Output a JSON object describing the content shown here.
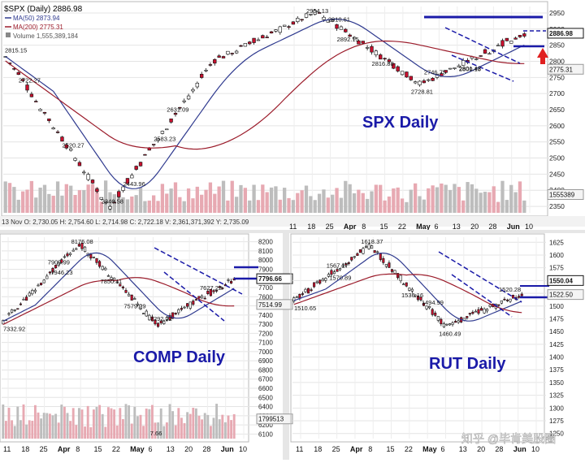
{
  "chart_data": [
    {
      "type": "candlestick",
      "title": "$SPX (Daily)",
      "last_price": "2886.98",
      "big_label": "SPX Daily",
      "legend": [
        {
          "label": "MA(50)",
          "value": "2873.94",
          "color": "#2f3a8f"
        },
        {
          "label": "MA(200)",
          "value": "2775.31",
          "color": "#9b1b2a"
        },
        {
          "label": "Volume",
          "value": "1,555,389,184",
          "color": "#888888"
        }
      ],
      "ohlc_strip": "13 Nov O: 2,730.05   H: 2,754.60   L: 2,714.98   C: 2,722.18   V: 2,361,371,392   Y: 2,735.09",
      "y_ticks": [
        2950,
        2900,
        2850,
        2800,
        2750,
        2700,
        2650,
        2600,
        2550,
        2500,
        2450,
        2400,
        2350
      ],
      "ylim": [
        2330,
        2970
      ],
      "x_ticks": [
        "11",
        "18",
        "25",
        "Apr",
        "8",
        "15",
        "22",
        "May",
        "6",
        "13",
        "20",
        "28",
        "Jun",
        "10"
      ],
      "price_boxes": [
        "2886.98",
        "2775.31",
        "1555389"
      ],
      "annotations": [
        "2954.13",
        "2892.15",
        "2910.61",
        "2816.88",
        "2815.15",
        "2800.18",
        "2746.75",
        "2801.43",
        "2722.27",
        "2728.81",
        "2631.09",
        "2583.23",
        "2520.27",
        "2443.96",
        "2346.58"
      ],
      "key_points": [
        {
          "label": "2815.15",
          "value": 2815.15
        },
        {
          "label": "2346.58",
          "value": 2346.58
        },
        {
          "label": "2800.18",
          "value": 2800.18
        },
        {
          "label": "2954.13",
          "value": 2954.13
        },
        {
          "label": "2728.81",
          "value": 2728.81
        },
        {
          "label": "2886.98",
          "value": 2886.98
        }
      ]
    },
    {
      "type": "candlestick",
      "title": "COMP Daily",
      "big_label": "COMP Daily",
      "y_ticks": [
        8200,
        8100,
        8000,
        7900,
        7800,
        7700,
        7600,
        7500,
        7400,
        7300,
        7200,
        7100,
        7000,
        6900,
        6800,
        6700,
        6600,
        6500,
        6400,
        6300,
        6200,
        6100
      ],
      "ylim": [
        6050,
        8250
      ],
      "x_ticks": [
        "11",
        "18",
        "25",
        "Apr",
        "8",
        "15",
        "22",
        "May",
        "6",
        "13",
        "20",
        "28",
        "Jun",
        "10"
      ],
      "price_boxes": [
        "7796.66",
        "7514.99",
        "1799513"
      ],
      "annotations": [
        "8176.08",
        "7946.23",
        "7909.99",
        "7850.11",
        "7627.22",
        "7579.29",
        "7292.22",
        "7332.92",
        "7.66"
      ],
      "key_points": [
        {
          "label": "7332.92",
          "value": 7332.92
        },
        {
          "label": "8176.08",
          "value": 8176.08
        },
        {
          "label": "7292.22",
          "value": 7292.22
        },
        {
          "label": "7796.66",
          "value": 7796.66
        }
      ]
    },
    {
      "type": "candlestick",
      "title": "RUT Daily",
      "big_label": "RUT Daily",
      "y_ticks": [
        1625,
        1600,
        1575,
        1550,
        1525,
        1500,
        1475,
        1450,
        1425,
        1400,
        1375,
        1350,
        1325,
        1300,
        1275,
        1250
      ],
      "ylim": [
        1240,
        1635
      ],
      "x_ticks": [
        "11",
        "18",
        "25",
        "Apr",
        "8",
        "15",
        "22",
        "May",
        "6",
        "13",
        "20",
        "28",
        "Jun",
        "10"
      ],
      "price_boxes": [
        "1550.04",
        "1522.50"
      ],
      "annotations": [
        "1618.37",
        "1570.89",
        "1567.17",
        "1536.16",
        "1520.28",
        "1510.65",
        "1494.99",
        "1460.49"
      ],
      "key_points": [
        {
          "label": "1510.65",
          "value": 1510.65
        },
        {
          "label": "1618.37",
          "value": 1618.37
        },
        {
          "label": "1460.49",
          "value": 1460.49
        },
        {
          "label": "1522.50",
          "value": 1522.5
        }
      ]
    }
  ],
  "watermark": "知乎 @毕肯美股圈"
}
